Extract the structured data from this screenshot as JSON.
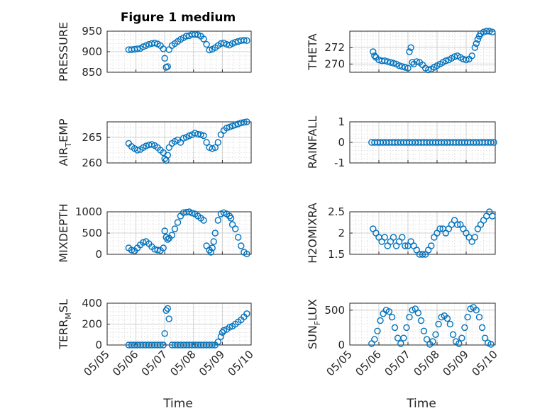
{
  "figure": {
    "title": "Figure 1 medium",
    "marker_color": "#0072bd",
    "xlabel": "Time",
    "xticks": [
      "05/05",
      "05/06",
      "05/07",
      "05/08",
      "05/09",
      "05/10"
    ]
  },
  "chart_data": [
    {
      "id": "pressure",
      "type": "scatter",
      "title": "Figure 1 medium",
      "ylabel": "PRESSURE",
      "xlim": [
        "05/05",
        "05/10"
      ],
      "ylim": [
        850,
        950
      ],
      "yticks": [
        850,
        900,
        950
      ],
      "grid": "on",
      "x": [
        5.75,
        5.85,
        5.95,
        6.05,
        6.15,
        6.25,
        6.35,
        6.45,
        6.55,
        6.65,
        6.75,
        6.85,
        6.95,
        7.0,
        7.05,
        7.1,
        7.15,
        7.25,
        7.35,
        7.45,
        7.55,
        7.65,
        7.75,
        7.85,
        7.95,
        8.05,
        8.15,
        8.25,
        8.35,
        8.45,
        8.55,
        8.65,
        8.75,
        8.85,
        8.95,
        9.05,
        9.15,
        9.25,
        9.35,
        9.45,
        9.55,
        9.65,
        9.75,
        9.85
      ],
      "y": [
        905,
        905,
        906,
        907,
        908,
        912,
        915,
        918,
        920,
        921,
        919,
        915,
        907,
        884,
        862,
        864,
        905,
        915,
        920,
        925,
        930,
        934,
        938,
        939,
        942,
        942,
        941,
        938,
        931,
        918,
        904,
        906,
        910,
        915,
        920,
        921,
        918,
        916,
        920,
        923,
        925,
        927,
        928,
        927
      ]
    },
    {
      "id": "theta",
      "type": "scatter",
      "ylabel": "THETA",
      "xlim": [
        "05/05",
        "05/10"
      ],
      "ylim": [
        269,
        274
      ],
      "yticks": [
        270,
        272
      ],
      "grid": "on",
      "x": [
        5.8,
        5.85,
        5.9,
        6.0,
        6.1,
        6.2,
        6.3,
        6.4,
        6.5,
        6.6,
        6.7,
        6.8,
        6.9,
        7.0,
        7.05,
        7.1,
        7.15,
        7.2,
        7.3,
        7.4,
        7.5,
        7.6,
        7.7,
        7.8,
        7.9,
        8.0,
        8.1,
        8.2,
        8.3,
        8.4,
        8.5,
        8.6,
        8.7,
        8.8,
        8.9,
        9.0,
        9.1,
        9.2,
        9.3,
        9.35,
        9.4,
        9.45,
        9.5,
        9.6,
        9.7,
        9.8,
        9.9
      ],
      "y": [
        271.5,
        271.0,
        270.8,
        270.5,
        270.4,
        270.4,
        270.3,
        270.2,
        270.1,
        270.0,
        269.8,
        269.7,
        269.6,
        269.5,
        271.5,
        272.0,
        270.2,
        270.0,
        270.3,
        270.2,
        269.9,
        269.5,
        269.3,
        269.4,
        269.6,
        269.8,
        270.0,
        270.2,
        270.4,
        270.5,
        270.7,
        270.9,
        271.0,
        270.8,
        270.6,
        270.5,
        270.6,
        271.0,
        272.0,
        272.5,
        273.0,
        273.4,
        273.7,
        273.9,
        274.0,
        274.0,
        273.9
      ]
    },
    {
      "id": "air_temp",
      "type": "scatter",
      "ylabel": "AIR_TEMP",
      "xlim": [
        "05/05",
        "05/10"
      ],
      "ylim": [
        260,
        268
      ],
      "yticks": [
        260,
        265
      ],
      "grid": "on",
      "x": [
        5.75,
        5.85,
        5.95,
        6.05,
        6.15,
        6.25,
        6.35,
        6.45,
        6.55,
        6.65,
        6.75,
        6.85,
        6.95,
        7.0,
        7.05,
        7.1,
        7.15,
        7.25,
        7.35,
        7.45,
        7.55,
        7.65,
        7.75,
        7.85,
        7.95,
        8.05,
        8.15,
        8.25,
        8.35,
        8.45,
        8.55,
        8.65,
        8.75,
        8.85,
        8.95,
        9.05,
        9.15,
        9.25,
        9.35,
        9.45,
        9.55,
        9.65,
        9.75,
        9.85
      ],
      "y": [
        263.8,
        263.2,
        262.8,
        262.5,
        262.6,
        263.0,
        263.3,
        263.5,
        263.6,
        263.4,
        263.0,
        262.5,
        262.0,
        260.8,
        260.5,
        261.5,
        263.0,
        263.8,
        264.2,
        264.5,
        264.0,
        264.8,
        265.0,
        265.3,
        265.5,
        265.8,
        265.6,
        265.5,
        265.3,
        264.0,
        263.0,
        262.8,
        263.0,
        264.0,
        265.5,
        266.3,
        266.8,
        267.0,
        267.2,
        267.4,
        267.6,
        267.8,
        267.9,
        268.0
      ]
    },
    {
      "id": "rainfall",
      "type": "scatter",
      "ylabel": "RAINFALL",
      "xlim": [
        "05/05",
        "05/10"
      ],
      "ylim": [
        -1,
        1
      ],
      "yticks": [
        -1,
        0,
        1
      ],
      "grid": "on",
      "x": [
        5.75,
        5.85,
        5.95,
        6.05,
        6.15,
        6.25,
        6.35,
        6.45,
        6.55,
        6.65,
        6.75,
        6.85,
        6.95,
        7.05,
        7.15,
        7.25,
        7.35,
        7.45,
        7.55,
        7.65,
        7.75,
        7.85,
        7.95,
        8.05,
        8.15,
        8.25,
        8.35,
        8.45,
        8.55,
        8.65,
        8.75,
        8.85,
        8.95,
        9.05,
        9.15,
        9.25,
        9.35,
        9.45,
        9.55,
        9.65,
        9.75,
        9.85,
        9.95
      ],
      "y": [
        0,
        0,
        0,
        0,
        0,
        0,
        0,
        0,
        0,
        0,
        0,
        0,
        0,
        0,
        0,
        0,
        0,
        0,
        0,
        0,
        0,
        0,
        0,
        0,
        0,
        0,
        0,
        0,
        0,
        0,
        0,
        0,
        0,
        0,
        0,
        0,
        0,
        0,
        0,
        0,
        0,
        0,
        0
      ]
    },
    {
      "id": "mixdepth",
      "type": "scatter",
      "ylabel": "MIXDEPTH",
      "xlim": [
        "05/05",
        "05/10"
      ],
      "ylim": [
        0,
        1000
      ],
      "yticks": [
        0,
        500,
        1000
      ],
      "grid": "on",
      "x": [
        5.75,
        5.85,
        5.95,
        6.05,
        6.15,
        6.25,
        6.35,
        6.45,
        6.55,
        6.65,
        6.75,
        6.85,
        6.95,
        7.0,
        7.05,
        7.1,
        7.15,
        7.25,
        7.35,
        7.45,
        7.55,
        7.65,
        7.75,
        7.85,
        7.95,
        8.05,
        8.15,
        8.25,
        8.35,
        8.45,
        8.55,
        8.6,
        8.65,
        8.7,
        8.75,
        8.85,
        8.95,
        9.05,
        9.15,
        9.25,
        9.3,
        9.35,
        9.45,
        9.55,
        9.65,
        9.75,
        9.85
      ],
      "y": [
        150,
        100,
        80,
        150,
        220,
        280,
        300,
        250,
        180,
        120,
        100,
        90,
        150,
        550,
        400,
        350,
        380,
        450,
        600,
        750,
        900,
        980,
        990,
        1000,
        970,
        950,
        900,
        850,
        800,
        200,
        100,
        50,
        150,
        300,
        500,
        800,
        950,
        980,
        950,
        900,
        850,
        700,
        600,
        400,
        200,
        50,
        10
      ]
    },
    {
      "id": "h2omixra",
      "type": "scatter",
      "ylabel": "H2OMIXRA",
      "xlim": [
        "05/05",
        "05/10"
      ],
      "ylim": [
        1.5,
        2.5
      ],
      "yticks": [
        1.5,
        2,
        2.5
      ],
      "grid": "on",
      "x": [
        5.8,
        5.9,
        6.0,
        6.1,
        6.2,
        6.3,
        6.4,
        6.5,
        6.6,
        6.7,
        6.8,
        6.9,
        7.0,
        7.1,
        7.2,
        7.3,
        7.4,
        7.5,
        7.6,
        7.7,
        7.8,
        7.9,
        8.0,
        8.1,
        8.2,
        8.3,
        8.4,
        8.5,
        8.6,
        8.7,
        8.8,
        8.9,
        9.0,
        9.1,
        9.2,
        9.3,
        9.4,
        9.5,
        9.6,
        9.7,
        9.8,
        9.9
      ],
      "y": [
        2.1,
        2.0,
        1.9,
        1.8,
        1.9,
        1.7,
        1.8,
        1.9,
        1.7,
        1.8,
        1.9,
        1.7,
        1.7,
        1.8,
        1.7,
        1.6,
        1.5,
        1.5,
        1.5,
        1.6,
        1.7,
        1.9,
        2.0,
        2.1,
        2.1,
        2.0,
        2.1,
        2.2,
        2.3,
        2.2,
        2.2,
        2.1,
        2.0,
        1.9,
        1.8,
        1.9,
        2.1,
        2.2,
        2.3,
        2.4,
        2.5,
        2.4
      ]
    },
    {
      "id": "terr_msl",
      "type": "scatter",
      "ylabel": "TERR_MSL",
      "xlim": [
        "05/05",
        "05/10"
      ],
      "ylim": [
        0,
        400
      ],
      "yticks": [
        0,
        200,
        400
      ],
      "grid": "on",
      "x": [
        5.75,
        5.85,
        5.95,
        6.05,
        6.15,
        6.25,
        6.35,
        6.45,
        6.55,
        6.65,
        6.75,
        6.85,
        6.95,
        7.0,
        7.05,
        7.1,
        7.15,
        7.25,
        7.35,
        7.45,
        7.55,
        7.65,
        7.75,
        7.85,
        7.95,
        8.05,
        8.15,
        8.25,
        8.35,
        8.45,
        8.55,
        8.65,
        8.75,
        8.85,
        8.95,
        9.0,
        9.05,
        9.15,
        9.25,
        9.35,
        9.45,
        9.55,
        9.65,
        9.75,
        9.85
      ],
      "y": [
        0,
        0,
        0,
        0,
        0,
        0,
        0,
        0,
        0,
        0,
        0,
        0,
        0,
        110,
        330,
        350,
        250,
        0,
        0,
        0,
        0,
        0,
        0,
        0,
        0,
        0,
        0,
        0,
        0,
        0,
        0,
        0,
        0,
        30,
        80,
        120,
        140,
        150,
        170,
        180,
        200,
        220,
        240,
        270,
        300
      ]
    },
    {
      "id": "sun_flux",
      "type": "scatter",
      "ylabel": "SUN_FLUX",
      "xlim": [
        "05/05",
        "05/10"
      ],
      "ylim": [
        0,
        600
      ],
      "yticks": [
        0,
        500
      ],
      "grid": "on",
      "x": [
        5.75,
        5.85,
        5.95,
        6.05,
        6.15,
        6.25,
        6.35,
        6.45,
        6.55,
        6.65,
        6.75,
        6.85,
        6.95,
        7.05,
        7.15,
        7.25,
        7.35,
        7.45,
        7.55,
        7.65,
        7.75,
        7.85,
        7.95,
        8.05,
        8.15,
        8.25,
        8.35,
        8.45,
        8.55,
        8.65,
        8.75,
        8.85,
        8.95,
        9.05,
        9.15,
        9.25,
        9.35,
        9.45,
        9.55,
        9.65,
        9.75,
        9.85
      ],
      "y": [
        20,
        80,
        200,
        350,
        450,
        500,
        480,
        400,
        250,
        100,
        20,
        100,
        250,
        400,
        500,
        520,
        460,
        350,
        200,
        80,
        10,
        50,
        150,
        300,
        400,
        420,
        380,
        300,
        150,
        50,
        20,
        100,
        250,
        400,
        520,
        540,
        500,
        400,
        250,
        100,
        30,
        10
      ]
    }
  ]
}
